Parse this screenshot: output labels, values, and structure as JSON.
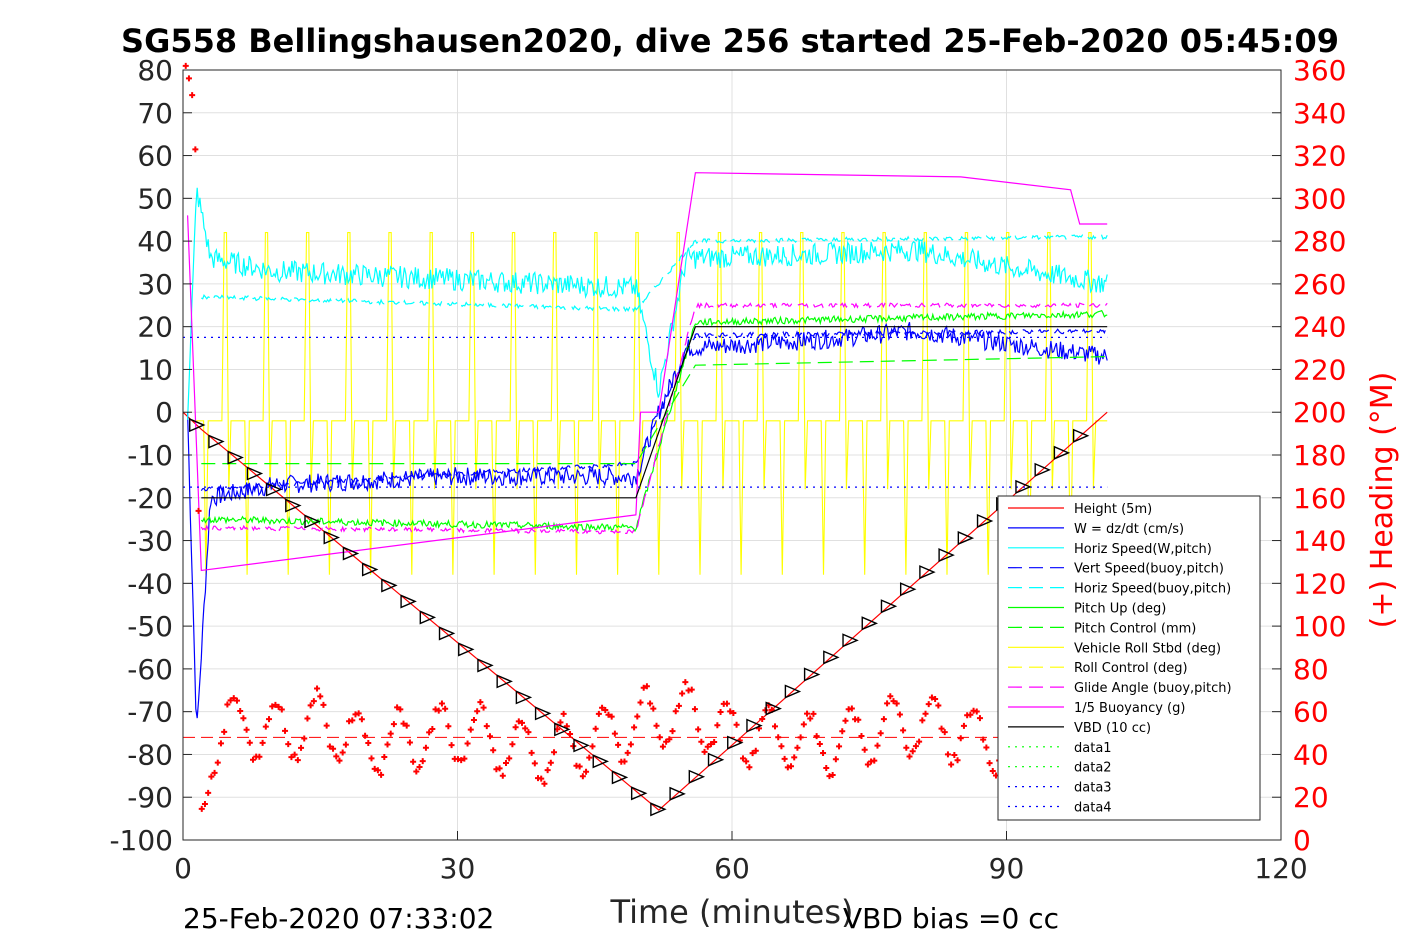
{
  "chart_data": {
    "type": "line",
    "title": "SG558 Bellingshausen2020, dive 256 started 25-Feb-2020 05:45:09",
    "xlabel": "Time (minutes)",
    "ylabel": "",
    "y2label": "(+) Heading (°M)",
    "xlim": [
      0,
      120
    ],
    "ylim": [
      -100,
      80
    ],
    "y2lim": [
      0,
      360
    ],
    "xticks": [
      "0",
      "30",
      "60",
      "90",
      "120"
    ],
    "yticks": [
      "80",
      "70",
      "60",
      "50",
      "40",
      "30",
      "20",
      "10",
      "0",
      "-10",
      "-20",
      "-30",
      "-40",
      "-50",
      "-60",
      "-70",
      "-80",
      "-90",
      "-100"
    ],
    "y2ticks": [
      "360",
      "340",
      "320",
      "300",
      "280",
      "260",
      "240",
      "220",
      "200",
      "180",
      "160",
      "140",
      "120",
      "100",
      "80",
      "60",
      "40",
      "20",
      "0"
    ],
    "grid": true,
    "legend_position": "bottom-right",
    "footer_left": "25-Feb-2020 07:33:02",
    "footer_right": "VBD bias =0 cc",
    "colors": {
      "height": "#ff0000",
      "w": "#0000ff",
      "horiz_w": "#00ffff",
      "vert_buoy": "#0000ff",
      "horiz_buoy": "#00ffff",
      "pitch": "#00ff00",
      "pitch_ctrl": "#00ff00",
      "roll": "#ffff00",
      "roll_ctrl": "#ffff00",
      "glide": "#ff00ff",
      "buoyancy": "#ff00ff",
      "vbd": "#000000",
      "data_green": "#00ff00",
      "data_blue": "#0000ff",
      "heading": "#ff0000"
    },
    "legend": [
      {
        "name": "Height (5m)",
        "color": "#ff0000",
        "style": "solid"
      },
      {
        "name": "W = dz/dt (cm/s)",
        "color": "#0000ff",
        "style": "solid"
      },
      {
        "name": "Horiz Speed(W,pitch)",
        "color": "#00ffff",
        "style": "solid"
      },
      {
        "name": "Vert Speed(buoy,pitch)",
        "color": "#0000ff",
        "style": "dashed"
      },
      {
        "name": "Horiz Speed(buoy,pitch)",
        "color": "#00ffff",
        "style": "dashed"
      },
      {
        "name": "Pitch Up (deg)",
        "color": "#00ff00",
        "style": "solid"
      },
      {
        "name": "Pitch Control (mm)",
        "color": "#00ff00",
        "style": "dashed"
      },
      {
        "name": "Vehicle Roll Stbd (deg)",
        "color": "#ffff00",
        "style": "solid"
      },
      {
        "name": "Roll Control (deg)",
        "color": "#ffff00",
        "style": "dashed"
      },
      {
        "name": "Glide Angle (buoy,pitch)",
        "color": "#ff00ff",
        "style": "dashed"
      },
      {
        "name": "1/5 Buoyancy (g)",
        "color": "#ff00ff",
        "style": "solid"
      },
      {
        "name": "VBD (10 cc)",
        "color": "#000000",
        "style": "solid"
      },
      {
        "name": "data1",
        "color": "#00ff00",
        "style": "dotted"
      },
      {
        "name": "data2",
        "color": "#00ff00",
        "style": "dotted"
      },
      {
        "name": "data3",
        "color": "#0000ff",
        "style": "dotted"
      },
      {
        "name": "data4",
        "color": "#0000ff",
        "style": "dotted"
      }
    ],
    "series": [
      {
        "name": "Height (5m)",
        "x": [
          0,
          1,
          2,
          52,
          101
        ],
        "y": [
          0,
          -2,
          -4,
          -93,
          0
        ]
      },
      {
        "name": "W = dz/dt (cm/s)",
        "x": [
          0.5,
          1.5,
          3,
          10,
          30,
          49.5,
          52,
          55,
          70,
          80,
          90,
          101
        ],
        "y": [
          0,
          -75,
          -20,
          -17,
          -15,
          -15,
          0,
          15,
          17,
          19,
          16,
          13
        ]
      },
      {
        "name": "Horiz Speed(W,pitch)",
        "x": [
          0.5,
          1.5,
          3,
          10,
          30,
          49.5,
          52,
          55,
          70,
          80,
          90,
          101
        ],
        "y": [
          0,
          52,
          36,
          33,
          31,
          29,
          5,
          36,
          37,
          38,
          34,
          30
        ]
      },
      {
        "name": "Vert Speed(buoy,pitch)",
        "x": [
          2,
          49.5,
          56,
          101
        ],
        "y": [
          -18,
          -12,
          18,
          19
        ]
      },
      {
        "name": "Horiz Speed(buoy,pitch)",
        "x": [
          2,
          49.5,
          56,
          101
        ],
        "y": [
          27,
          24,
          40,
          41
        ]
      },
      {
        "name": "Pitch Up (deg)",
        "x": [
          2,
          49.5,
          56,
          101
        ],
        "y": [
          -25,
          -27,
          21,
          23
        ]
      },
      {
        "name": "Pitch Control (mm)",
        "x": [
          2,
          49.5,
          56,
          101
        ],
        "y": [
          -12,
          -12,
          11,
          13
        ]
      },
      {
        "name": "Glide Angle (buoy,pitch)",
        "x": [
          2,
          49.5,
          56,
          101
        ],
        "y": [
          -27,
          -28,
          25,
          25
        ]
      },
      {
        "name": "1/5 Buoyancy (g)",
        "x": [
          0.5,
          2,
          49.5,
          50,
          52,
          56,
          85,
          97,
          98,
          101
        ],
        "y": [
          46,
          -37,
          -24,
          0,
          0,
          56,
          55,
          52,
          44,
          44
        ]
      },
      {
        "name": "VBD (10 cc)",
        "x": [
          2,
          49.5,
          56,
          101
        ],
        "y": [
          -20,
          -20,
          20,
          20
        ]
      },
      {
        "name": "data2",
        "x": [
          0,
          101
        ],
        "y": [
          17.5,
          17.5
        ]
      },
      {
        "name": "data3",
        "x": [
          0,
          101
        ],
        "y": [
          -17.5,
          -17.5
        ]
      },
      {
        "name": "Heading (°M)",
        "axis": "right",
        "x": [
          0.3,
          0.8,
          1.3,
          2,
          3,
          5,
          10,
          15,
          20,
          30,
          40,
          50,
          55,
          60,
          70,
          80,
          90,
          99
        ],
        "y": [
          355,
          340,
          330,
          10,
          40,
          55,
          50,
          55,
          45,
          50,
          40,
          55,
          60,
          50,
          45,
          55,
          45,
          50
        ]
      },
      {
        "name": "Heading reference",
        "axis": "right",
        "x": [
          0,
          101
        ],
        "y": [
          48,
          48
        ]
      }
    ]
  }
}
